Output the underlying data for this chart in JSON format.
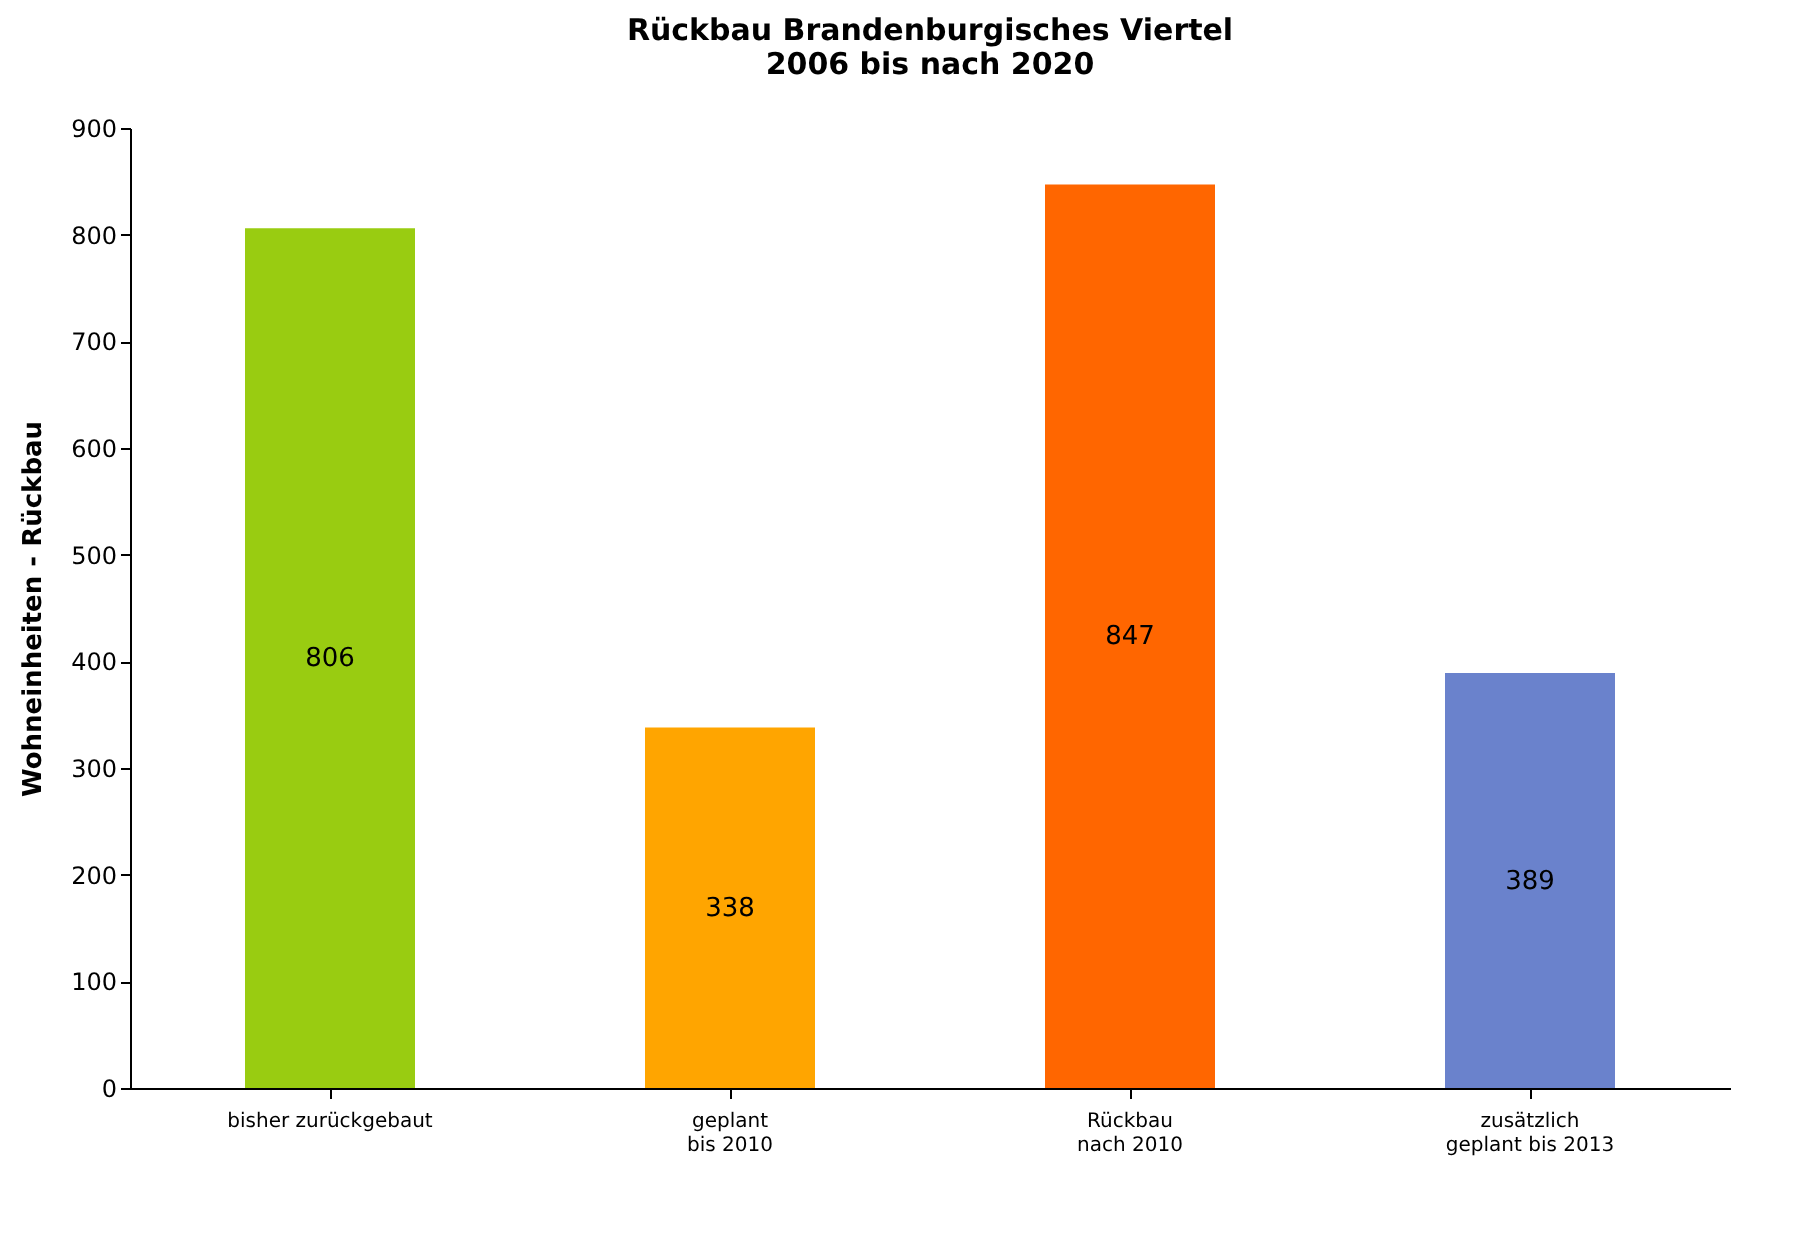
{
  "chart_data": {
    "type": "bar",
    "title": "Rückbau Brandenburgisches Viertel\n2006 bis nach 2020",
    "categories": [
      "bisher zurückgebaut",
      "geplant\nbis 2010",
      "Rückbau\nnach 2010",
      "zusätzlich\ngeplant bis 2013"
    ],
    "values": [
      806,
      338,
      847,
      389
    ],
    "colors": [
      "#99cc11",
      "#ffa500",
      "#ff6600",
      "#6a82cc"
    ],
    "ylabel": "Wohneinheiten - Rückbau",
    "ylim": [
      0,
      900
    ],
    "yticks": [
      0,
      100,
      200,
      300,
      400,
      500,
      600,
      700,
      800,
      900
    ],
    "grid": false,
    "data_labels": true
  }
}
